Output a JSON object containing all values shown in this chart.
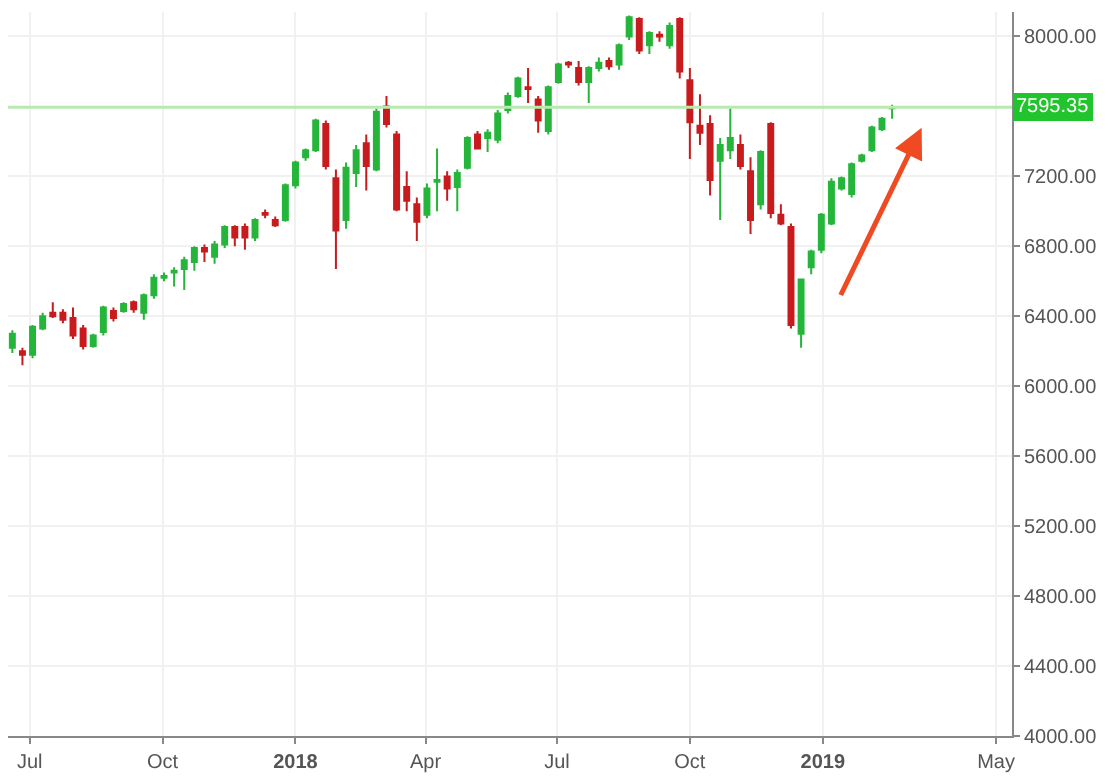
{
  "chart_data": {
    "type": "candlestick",
    "x": [
      "2017-06-19",
      "2017-06-26",
      "2017-07-03",
      "2017-07-10",
      "2017-07-17",
      "2017-07-24",
      "2017-07-31",
      "2017-08-07",
      "2017-08-14",
      "2017-08-21",
      "2017-08-28",
      "2017-09-04",
      "2017-09-11",
      "2017-09-18",
      "2017-09-25",
      "2017-10-02",
      "2017-10-09",
      "2017-10-16",
      "2017-10-23",
      "2017-10-30",
      "2017-11-06",
      "2017-11-13",
      "2017-11-20",
      "2017-11-27",
      "2017-12-04",
      "2017-12-11",
      "2017-12-18",
      "2017-12-25",
      "2018-01-01",
      "2018-01-08",
      "2018-01-15",
      "2018-01-22",
      "2018-01-29",
      "2018-02-05",
      "2018-02-12",
      "2018-02-19",
      "2018-02-26",
      "2018-03-05",
      "2018-03-12",
      "2018-03-19",
      "2018-03-26",
      "2018-04-02",
      "2018-04-09",
      "2018-04-16",
      "2018-04-23",
      "2018-04-30",
      "2018-05-07",
      "2018-05-14",
      "2018-05-21",
      "2018-05-28",
      "2018-06-04",
      "2018-06-11",
      "2018-06-18",
      "2018-06-25",
      "2018-07-02",
      "2018-07-09",
      "2018-07-16",
      "2018-07-23",
      "2018-07-30",
      "2018-08-06",
      "2018-08-13",
      "2018-08-20",
      "2018-08-27",
      "2018-09-03",
      "2018-09-10",
      "2018-09-17",
      "2018-09-24",
      "2018-10-01",
      "2018-10-08",
      "2018-10-15",
      "2018-10-22",
      "2018-10-29",
      "2018-11-05",
      "2018-11-12",
      "2018-11-19",
      "2018-11-26",
      "2018-12-03",
      "2018-12-10",
      "2018-12-17",
      "2018-12-24",
      "2018-12-31",
      "2019-01-07",
      "2019-01-14",
      "2019-01-21",
      "2019-01-28",
      "2019-02-04",
      "2019-02-11",
      "2019-02-18"
    ],
    "ohlc": [
      [
        6220,
        6320,
        6190,
        6300
      ],
      [
        6200,
        6220,
        6120,
        6180
      ],
      [
        6180,
        6350,
        6160,
        6340
      ],
      [
        6330,
        6420,
        6320,
        6400
      ],
      [
        6420,
        6480,
        6390,
        6400
      ],
      [
        6420,
        6440,
        6360,
        6380
      ],
      [
        6390,
        6450,
        6270,
        6290
      ],
      [
        6330,
        6350,
        6210,
        6230
      ],
      [
        6230,
        6300,
        6220,
        6290
      ],
      [
        6310,
        6460,
        6290,
        6450
      ],
      [
        6430,
        6450,
        6370,
        6390
      ],
      [
        6430,
        6480,
        6420,
        6470
      ],
      [
        6480,
        6490,
        6420,
        6440
      ],
      [
        6420,
        6530,
        6380,
        6520
      ],
      [
        6520,
        6640,
        6500,
        6620
      ],
      [
        6620,
        6650,
        6600,
        6630
      ],
      [
        6650,
        6680,
        6570,
        6660
      ],
      [
        6670,
        6740,
        6550,
        6720
      ],
      [
        6710,
        6800,
        6660,
        6790
      ],
      [
        6790,
        6810,
        6710,
        6770
      ],
      [
        6740,
        6830,
        6700,
        6810
      ],
      [
        6810,
        6920,
        6790,
        6910
      ],
      [
        6910,
        6920,
        6800,
        6850
      ],
      [
        6910,
        6930,
        6780,
        6850
      ],
      [
        6850,
        6960,
        6830,
        6950
      ],
      [
        6990,
        7010,
        6960,
        6980
      ],
      [
        6950,
        6970,
        6910,
        6920
      ],
      [
        6950,
        7160,
        6940,
        7150
      ],
      [
        7150,
        7290,
        7130,
        7280
      ],
      [
        7310,
        7360,
        7290,
        7350
      ],
      [
        7350,
        7530,
        7340,
        7520
      ],
      [
        7500,
        7520,
        7240,
        7260
      ],
      [
        7190,
        7240,
        6670,
        6890
      ],
      [
        6950,
        7280,
        6900,
        7250
      ],
      [
        7220,
        7380,
        7140,
        7350
      ],
      [
        7390,
        7440,
        7120,
        7260
      ],
      [
        7240,
        7590,
        7230,
        7570
      ],
      [
        7600,
        7660,
        7480,
        7500
      ],
      [
        7440,
        7460,
        7000,
        7010
      ],
      [
        7140,
        7230,
        7000,
        7060
      ],
      [
        7040,
        7080,
        6830,
        6940
      ],
      [
        6980,
        7160,
        6960,
        7130
      ],
      [
        7170,
        7360,
        7000,
        7180
      ],
      [
        7200,
        7230,
        7060,
        7130
      ],
      [
        7140,
        7240,
        7000,
        7220
      ],
      [
        7250,
        7430,
        7240,
        7420
      ],
      [
        7440,
        7460,
        7360,
        7360
      ],
      [
        7420,
        7470,
        7340,
        7450
      ],
      [
        7410,
        7580,
        7390,
        7560
      ],
      [
        7580,
        7680,
        7560,
        7660
      ],
      [
        7660,
        7770,
        7650,
        7760
      ],
      [
        7710,
        7820,
        7620,
        7700
      ],
      [
        7640,
        7660,
        7450,
        7520
      ],
      [
        7460,
        7720,
        7440,
        7710
      ],
      [
        7740,
        7850,
        7730,
        7840
      ],
      [
        7850,
        7860,
        7820,
        7840
      ],
      [
        7820,
        7860,
        7720,
        7740
      ],
      [
        7740,
        7830,
        7620,
        7820
      ],
      [
        7820,
        7880,
        7800,
        7850
      ],
      [
        7860,
        7880,
        7810,
        7830
      ],
      [
        7840,
        7960,
        7810,
        7950
      ],
      [
        8000,
        8120,
        7980,
        8110
      ],
      [
        8100,
        8110,
        7900,
        7920
      ],
      [
        7950,
        8030,
        7900,
        8020
      ],
      [
        8010,
        8030,
        7970,
        8000
      ],
      [
        7950,
        8080,
        7930,
        8060
      ],
      [
        8100,
        8110,
        7760,
        7800
      ],
      [
        7750,
        7820,
        7300,
        7510
      ],
      [
        7490,
        7670,
        7380,
        7450
      ],
      [
        7500,
        7550,
        7090,
        7180
      ],
      [
        7290,
        7420,
        6950,
        7380
      ],
      [
        7350,
        7590,
        7300,
        7420
      ],
      [
        7380,
        7440,
        7240,
        7260
      ],
      [
        7230,
        7310,
        6870,
        6950
      ],
      [
        7040,
        7350,
        7010,
        7340
      ],
      [
        7500,
        7510,
        6960,
        6990
      ],
      [
        6980,
        7040,
        6920,
        6930
      ],
      [
        6910,
        6930,
        6330,
        6350
      ],
      [
        6300,
        6610,
        6220,
        6610
      ],
      [
        6680,
        6780,
        6640,
        6770
      ],
      [
        6780,
        6990,
        6760,
        6980
      ],
      [
        6930,
        7190,
        6920,
        7170
      ],
      [
        7130,
        7200,
        7120,
        7190
      ],
      [
        7100,
        7280,
        7080,
        7270
      ],
      [
        7290,
        7330,
        7280,
        7320
      ],
      [
        7350,
        7490,
        7340,
        7480
      ],
      [
        7470,
        7540,
        7460,
        7530
      ],
      [
        7590,
        7610,
        7530,
        7595
      ]
    ],
    "colors": [
      "#24b53a",
      "#c81b1e",
      "#24b53a",
      "#24b53a",
      "#c81b1e",
      "#c81b1e",
      "#c81b1e",
      "#c81b1e",
      "#24b53a",
      "#24b53a",
      "#c81b1e",
      "#24b53a",
      "#c81b1e",
      "#24b53a",
      "#24b53a",
      "#24b53a",
      "#24b53a",
      "#24b53a",
      "#24b53a",
      "#c81b1e",
      "#24b53a",
      "#24b53a",
      "#c81b1e",
      "#c81b1e",
      "#24b53a",
      "#c81b1e",
      "#c81b1e",
      "#24b53a",
      "#24b53a",
      "#24b53a",
      "#24b53a",
      "#c81b1e",
      "#c81b1e",
      "#24b53a",
      "#24b53a",
      "#c81b1e",
      "#24b53a",
      "#c81b1e",
      "#c81b1e",
      "#c81b1e",
      "#c81b1e",
      "#24b53a",
      "#24b53a",
      "#c81b1e",
      "#24b53a",
      "#24b53a",
      "#c81b1e",
      "#24b53a",
      "#24b53a",
      "#24b53a",
      "#24b53a",
      "#c81b1e",
      "#c81b1e",
      "#24b53a",
      "#24b53a",
      "#c81b1e",
      "#c81b1e",
      "#24b53a",
      "#24b53a",
      "#c81b1e",
      "#24b53a",
      "#24b53a",
      "#c81b1e",
      "#24b53a",
      "#c81b1e",
      "#24b53a",
      "#c81b1e",
      "#c81b1e",
      "#c81b1e",
      "#c81b1e",
      "#24b53a",
      "#24b53a",
      "#c81b1e",
      "#c81b1e",
      "#24b53a",
      "#c81b1e",
      "#c81b1e",
      "#c81b1e",
      "#24b53a",
      "#24b53a",
      "#24b53a",
      "#24b53a",
      "#24b53a",
      "#24b53a",
      "#24b53a",
      "#24b53a",
      "#24b53a",
      "#24b53a"
    ],
    "xlim": [
      "2017-06-16",
      "2019-05-12"
    ],
    "xticks": [
      {
        "value": "2017-07-01",
        "label": "Jul"
      },
      {
        "value": "2017-10-01",
        "label": "Oct"
      },
      {
        "value": "2018-01-01",
        "label": "2018"
      },
      {
        "value": "2018-04-01",
        "label": "Apr"
      },
      {
        "value": "2018-07-01",
        "label": "Jul"
      },
      {
        "value": "2018-10-01",
        "label": "Oct"
      },
      {
        "value": "2019-01-01",
        "label": "2019"
      },
      {
        "value": "2019-05-01",
        "label": "May"
      }
    ],
    "ylim": [
      4000,
      8140
    ],
    "yticks": [
      {
        "value": 4000,
        "label": "4000.00"
      },
      {
        "value": 4400,
        "label": "4400.00"
      },
      {
        "value": 4800,
        "label": "4800.00"
      },
      {
        "value": 5200,
        "label": "5200.00"
      },
      {
        "value": 5600,
        "label": "5600.00"
      },
      {
        "value": 6000,
        "label": "6000.00"
      },
      {
        "value": 6400,
        "label": "6400.00"
      },
      {
        "value": 6800,
        "label": "6800.00"
      },
      {
        "value": 7200,
        "label": "7200.00"
      },
      {
        "value": 8000,
        "label": "8000.00"
      }
    ],
    "grid": true,
    "ref_lines": [
      {
        "axis": "y",
        "value": 7595.35,
        "label": "7595.35",
        "color": "#b8eab0"
      }
    ]
  }
}
